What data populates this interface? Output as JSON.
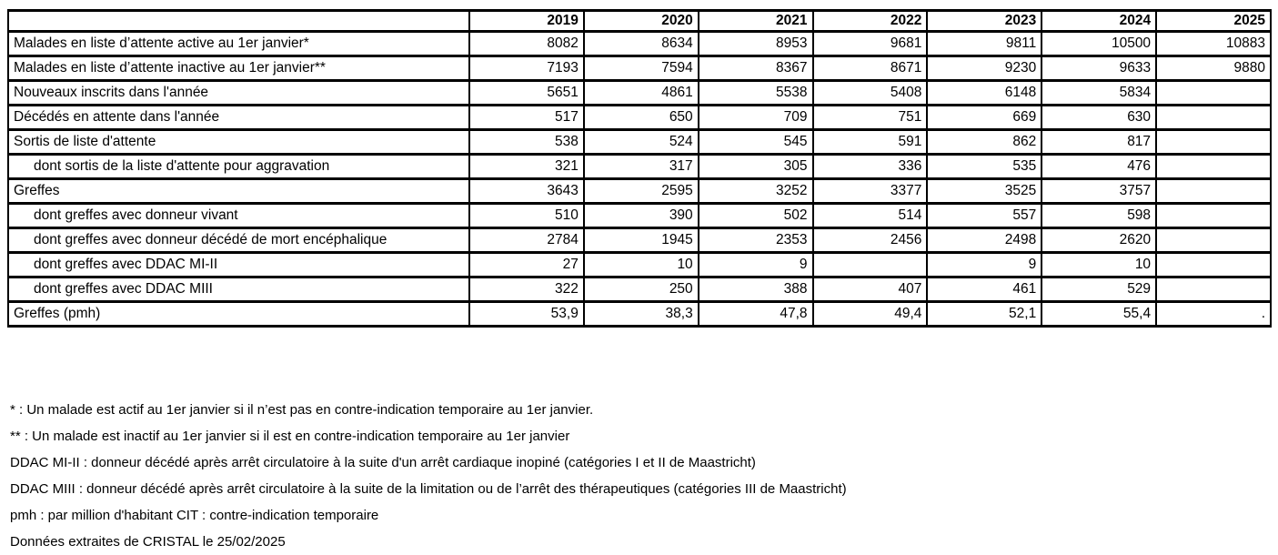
{
  "table": {
    "columns": [
      "",
      "2019",
      "2020",
      "2021",
      "2022",
      "2023",
      "2024",
      "2025"
    ],
    "rows": [
      {
        "label": "Malades en liste d’attente active au 1er janvier*",
        "indent": false,
        "values": [
          "8082",
          "8634",
          "8953",
          "9681",
          "9811",
          "10500",
          "10883"
        ]
      },
      {
        "label": "Malades en liste d’attente inactive au 1er janvier**",
        "indent": false,
        "values": [
          "7193",
          "7594",
          "8367",
          "8671",
          "9230",
          "9633",
          "9880"
        ]
      },
      {
        "label": "Nouveaux inscrits dans l'année",
        "indent": false,
        "values": [
          "5651",
          "4861",
          "5538",
          "5408",
          "6148",
          "5834",
          ""
        ]
      },
      {
        "label": "Décédés en attente dans l'année",
        "indent": false,
        "values": [
          "517",
          "650",
          "709",
          "751",
          "669",
          "630",
          ""
        ]
      },
      {
        "label": "Sortis de liste d'attente",
        "indent": false,
        "values": [
          "538",
          "524",
          "545",
          "591",
          "862",
          "817",
          ""
        ]
      },
      {
        "label": "dont sortis de la liste d'attente pour aggravation",
        "indent": true,
        "values": [
          "321",
          "317",
          "305",
          "336",
          "535",
          "476",
          ""
        ]
      },
      {
        "label": "Greffes",
        "indent": false,
        "values": [
          "3643",
          "2595",
          "3252",
          "3377",
          "3525",
          "3757",
          ""
        ]
      },
      {
        "label": "dont greffes avec donneur vivant",
        "indent": true,
        "values": [
          "510",
          "390",
          "502",
          "514",
          "557",
          "598",
          ""
        ]
      },
      {
        "label": "dont greffes avec donneur décédé de mort encéphalique",
        "indent": true,
        "values": [
          "2784",
          "1945",
          "2353",
          "2456",
          "2498",
          "2620",
          ""
        ]
      },
      {
        "label": "dont greffes avec DDAC MI-II",
        "indent": true,
        "values": [
          "27",
          "10",
          "9",
          "",
          "9",
          "10",
          ""
        ]
      },
      {
        "label": "dont greffes avec DDAC MIII",
        "indent": true,
        "values": [
          "322",
          "250",
          "388",
          "407",
          "461",
          "529",
          ""
        ]
      },
      {
        "label": "Greffes (pmh)",
        "indent": false,
        "values": [
          "53,9",
          "38,3",
          "47,8",
          "49,4",
          "52,1",
          "55,4",
          "."
        ]
      }
    ]
  },
  "footnotes": [
    "* : Un malade est actif au 1er janvier si il n’est pas en contre-indication temporaire au 1er janvier.",
    "** : Un malade est inactif au 1er janvier si il est en contre-indication temporaire au 1er janvier",
    "DDAC MI-II : donneur décédé après arrêt circulatoire à la suite d'un arrêt cardiaque inopiné (catégories I et II de Maastricht)",
    "DDAC MIII : donneur décédé après arrêt circulatoire à la suite de la limitation ou de l’arrêt des thérapeutiques (catégories III de Maastricht)",
    "pmh : par million d'habitant CIT : contre-indication temporaire",
    "Données extraites de CRISTAL le 25/02/2025"
  ]
}
